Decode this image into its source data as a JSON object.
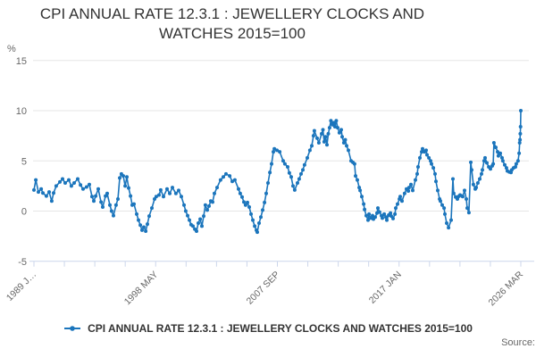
{
  "title": {
    "line1": "CPI ANNUAL RATE 12.3.1 : JEWELLERY CLOCKS AND",
    "line2": "WATCHES 2015=100"
  },
  "legend": {
    "label": "CPI ANNUAL RATE 12.3.1 : JEWELLERY CLOCKS AND WATCHES 2015=100"
  },
  "source": {
    "label": "Source:"
  },
  "colors": {
    "series": "#1b75bc",
    "grid": "#e6e6e6",
    "axis": "#ccd6eb",
    "tick_text": "#666666",
    "title_text": "#333333"
  },
  "chart_data": {
    "type": "line",
    "title": "CPI ANNUAL RATE 12.3.1 : JEWELLERY CLOCKS AND WATCHES 2015=100",
    "xlabel": "",
    "ylabel": "%",
    "y_unit": "%",
    "ylim": [
      -5,
      15
    ],
    "yticks": [
      15,
      10,
      5,
      0,
      -5
    ],
    "xlim": [
      1989.0,
      2026.17
    ],
    "x_tick_labels": [
      "1989 J…",
      "1998 MAY",
      "2007 SEP",
      "2017 JAN",
      "2026 MAR"
    ],
    "x_minor_ticks_between_labels": 3,
    "grid": true,
    "legend_position": "bottom",
    "marker": "dot",
    "series": [
      {
        "name": "CPI ANNUAL RATE 12.3.1 : JEWELLERY CLOCKS AND WATCHES 2015=100",
        "color": "#1b75bc",
        "points": [
          [
            1989.0,
            2.1
          ],
          [
            1989.14,
            3.1
          ],
          [
            1989.34,
            1.9
          ],
          [
            1989.55,
            2.2
          ],
          [
            1989.68,
            1.8
          ],
          [
            1989.95,
            1.5
          ],
          [
            1990.16,
            1.9
          ],
          [
            1990.36,
            1.0
          ],
          [
            1990.5,
            1.8
          ],
          [
            1990.7,
            2.5
          ],
          [
            1990.98,
            2.9
          ],
          [
            1991.18,
            3.2
          ],
          [
            1991.39,
            2.8
          ],
          [
            1991.66,
            3.1
          ],
          [
            1991.86,
            2.5
          ],
          [
            1992.07,
            2.8
          ],
          [
            1992.34,
            3.2
          ],
          [
            1992.55,
            2.6
          ],
          [
            1992.75,
            2.2
          ],
          [
            1993.02,
            2.4
          ],
          [
            1993.23,
            2.65
          ],
          [
            1993.43,
            1.45
          ],
          [
            1993.57,
            1.0
          ],
          [
            1993.71,
            1.5
          ],
          [
            1993.91,
            2.2
          ],
          [
            1994.12,
            0.9
          ],
          [
            1994.25,
            0.4
          ],
          [
            1994.46,
            1.5
          ],
          [
            1994.59,
            1.75
          ],
          [
            1994.8,
            0.6
          ],
          [
            1994.93,
            0.0
          ],
          [
            1995.07,
            -0.45
          ],
          [
            1995.27,
            0.6
          ],
          [
            1995.41,
            1.2
          ],
          [
            1995.55,
            3.3
          ],
          [
            1995.68,
            3.7
          ],
          [
            1995.82,
            3.5
          ],
          [
            1995.96,
            2.5
          ],
          [
            1996.09,
            3.4
          ],
          [
            1996.23,
            2.3
          ],
          [
            1996.37,
            1.5
          ],
          [
            1996.5,
            0.6
          ],
          [
            1996.64,
            0.7
          ],
          [
            1996.84,
            -0.3
          ],
          [
            1996.98,
            -0.9
          ],
          [
            1997.12,
            -1.4
          ],
          [
            1997.25,
            -1.9
          ],
          [
            1997.39,
            -1.6
          ],
          [
            1997.53,
            -2.0
          ],
          [
            1997.66,
            -1.3
          ],
          [
            1997.8,
            -0.5
          ],
          [
            1998.0,
            0.3
          ],
          [
            1998.21,
            1.2
          ],
          [
            1998.34,
            1.45
          ],
          [
            1998.55,
            1.6
          ],
          [
            1998.68,
            2.1
          ],
          [
            1998.89,
            1.45
          ],
          [
            1999.16,
            2.2
          ],
          [
            1999.37,
            1.75
          ],
          [
            1999.57,
            2.35
          ],
          [
            1999.84,
            1.75
          ],
          [
            2000.05,
            2.05
          ],
          [
            2000.25,
            1.45
          ],
          [
            2000.46,
            0.6
          ],
          [
            2000.59,
            0.0
          ],
          [
            2000.73,
            -0.45
          ],
          [
            2000.87,
            -0.9
          ],
          [
            2001.0,
            -1.35
          ],
          [
            2001.14,
            -1.5
          ],
          [
            2001.28,
            -1.8
          ],
          [
            2001.41,
            -2.0
          ],
          [
            2001.55,
            -1.2
          ],
          [
            2001.69,
            -0.8
          ],
          [
            2001.82,
            -1.5
          ],
          [
            2001.96,
            -0.5
          ],
          [
            2002.09,
            0.6
          ],
          [
            2002.23,
            0.1
          ],
          [
            2002.37,
            0.5
          ],
          [
            2002.5,
            1.0
          ],
          [
            2002.64,
            0.9
          ],
          [
            2002.78,
            1.75
          ],
          [
            2002.98,
            2.35
          ],
          [
            2003.25,
            3.1
          ],
          [
            2003.46,
            3.4
          ],
          [
            2003.66,
            3.7
          ],
          [
            2003.94,
            3.5
          ],
          [
            2004.14,
            2.95
          ],
          [
            2004.34,
            3.1
          ],
          [
            2004.62,
            2.2
          ],
          [
            2004.75,
            1.75
          ],
          [
            2004.89,
            1.4
          ],
          [
            2005.03,
            0.9
          ],
          [
            2005.16,
            0.6
          ],
          [
            2005.3,
            0.85
          ],
          [
            2005.44,
            0.4
          ],
          [
            2005.57,
            -0.3
          ],
          [
            2005.71,
            -0.9
          ],
          [
            2005.85,
            -1.5
          ],
          [
            2005.98,
            -1.9
          ],
          [
            2006.05,
            -2.1
          ],
          [
            2006.19,
            -1.2
          ],
          [
            2006.32,
            -0.6
          ],
          [
            2006.46,
            0.1
          ],
          [
            2006.6,
            0.85
          ],
          [
            2006.73,
            1.75
          ],
          [
            2006.87,
            2.8
          ],
          [
            2007.01,
            3.85
          ],
          [
            2007.14,
            4.7
          ],
          [
            2007.28,
            5.9
          ],
          [
            2007.35,
            6.2
          ],
          [
            2007.55,
            6.05
          ],
          [
            2007.76,
            5.9
          ],
          [
            2008.03,
            5.0
          ],
          [
            2008.16,
            4.7
          ],
          [
            2008.37,
            4.4
          ],
          [
            2008.5,
            3.8
          ],
          [
            2008.64,
            3.4
          ],
          [
            2008.78,
            2.5
          ],
          [
            2008.91,
            2.1
          ],
          [
            2009.12,
            2.8
          ],
          [
            2009.25,
            3.2
          ],
          [
            2009.39,
            3.7
          ],
          [
            2009.53,
            4.1
          ],
          [
            2009.66,
            4.6
          ],
          [
            2009.87,
            5.3
          ],
          [
            2010.07,
            6.05
          ],
          [
            2010.21,
            6.5
          ],
          [
            2010.34,
            7.5
          ],
          [
            2010.41,
            8.0
          ],
          [
            2010.62,
            7.25
          ],
          [
            2010.75,
            6.8
          ],
          [
            2010.96,
            7.7
          ],
          [
            2011.06,
            8.1
          ],
          [
            2011.16,
            6.9
          ],
          [
            2011.27,
            7.4
          ],
          [
            2011.37,
            6.6
          ],
          [
            2011.47,
            7.7
          ],
          [
            2011.57,
            8.3
          ],
          [
            2011.67,
            9.0
          ],
          [
            2011.78,
            8.6
          ],
          [
            2011.88,
            8.8
          ],
          [
            2011.98,
            8.4
          ],
          [
            2012.08,
            9.0
          ],
          [
            2012.19,
            8.3
          ],
          [
            2012.32,
            7.8
          ],
          [
            2012.46,
            8.1
          ],
          [
            2012.53,
            7.4
          ],
          [
            2012.66,
            6.8
          ],
          [
            2012.77,
            7.1
          ],
          [
            2012.87,
            6.5
          ],
          [
            2013.01,
            6.05
          ],
          [
            2013.21,
            5.0
          ],
          [
            2013.35,
            4.85
          ],
          [
            2013.48,
            4.7
          ],
          [
            2013.55,
            3.5
          ],
          [
            2013.69,
            3.1
          ],
          [
            2013.83,
            2.35
          ],
          [
            2013.9,
            2.05
          ],
          [
            2014.03,
            1.45
          ],
          [
            2014.17,
            0.7
          ],
          [
            2014.24,
            0.15
          ],
          [
            2014.37,
            -0.45
          ],
          [
            2014.51,
            -0.9
          ],
          [
            2014.58,
            -0.3
          ],
          [
            2014.71,
            -0.7
          ],
          [
            2014.85,
            -0.45
          ],
          [
            2014.92,
            -0.8
          ],
          [
            2015.05,
            -0.6
          ],
          [
            2015.19,
            -0.2
          ],
          [
            2015.26,
            0.3
          ],
          [
            2015.39,
            -0.1
          ],
          [
            2015.53,
            -0.45
          ],
          [
            2015.6,
            -0.7
          ],
          [
            2015.74,
            -0.3
          ],
          [
            2015.87,
            -0.6
          ],
          [
            2015.94,
            -0.9
          ],
          [
            2016.08,
            -0.4
          ],
          [
            2016.22,
            -0.2
          ],
          [
            2016.28,
            -0.5
          ],
          [
            2016.42,
            -0.75
          ],
          [
            2016.56,
            -0.3
          ],
          [
            2016.62,
            0.3
          ],
          [
            2016.76,
            0.7
          ],
          [
            2016.9,
            1.2
          ],
          [
            2016.96,
            1.45
          ],
          [
            2017.1,
            1.0
          ],
          [
            2017.3,
            1.75
          ],
          [
            2017.44,
            2.2
          ],
          [
            2017.58,
            2.0
          ],
          [
            2017.64,
            2.35
          ],
          [
            2017.78,
            2.65
          ],
          [
            2017.92,
            2.05
          ],
          [
            2018.12,
            3.1
          ],
          [
            2018.26,
            3.7
          ],
          [
            2018.33,
            4.4
          ],
          [
            2018.46,
            5.3
          ],
          [
            2018.6,
            5.9
          ],
          [
            2018.67,
            6.2
          ],
          [
            2018.81,
            5.9
          ],
          [
            2018.94,
            6.05
          ],
          [
            2019.01,
            5.6
          ],
          [
            2019.15,
            5.3
          ],
          [
            2019.28,
            5.0
          ],
          [
            2019.35,
            4.7
          ],
          [
            2019.49,
            4.3
          ],
          [
            2019.62,
            3.7
          ],
          [
            2019.69,
            2.95
          ],
          [
            2019.83,
            2.05
          ],
          [
            2019.97,
            1.2
          ],
          [
            2020.03,
            1.0
          ],
          [
            2020.17,
            0.6
          ],
          [
            2020.31,
            0.3
          ],
          [
            2020.37,
            -0.3
          ],
          [
            2020.51,
            -1.2
          ],
          [
            2020.65,
            -1.65
          ],
          [
            2020.85,
            -0.9
          ],
          [
            2020.99,
            3.2
          ],
          [
            2021.05,
            1.75
          ],
          [
            2021.19,
            1.4
          ],
          [
            2021.33,
            1.2
          ],
          [
            2021.4,
            1.45
          ],
          [
            2021.53,
            1.6
          ],
          [
            2021.67,
            1.5
          ],
          [
            2021.74,
            1.45
          ],
          [
            2021.87,
            2.05
          ],
          [
            2022.01,
            1.2
          ],
          [
            2022.08,
            0.3
          ],
          [
            2022.21,
            -0.15
          ],
          [
            2022.35,
            4.85
          ],
          [
            2022.42,
            4.1
          ],
          [
            2022.55,
            2.65
          ],
          [
            2022.69,
            2.2
          ],
          [
            2022.76,
            2.35
          ],
          [
            2022.89,
            2.8
          ],
          [
            2023.03,
            3.2
          ],
          [
            2023.17,
            3.7
          ],
          [
            2023.24,
            4.1
          ],
          [
            2023.37,
            5.0
          ],
          [
            2023.44,
            5.3
          ],
          [
            2023.58,
            4.8
          ],
          [
            2023.72,
            4.4
          ],
          [
            2023.85,
            4.2
          ],
          [
            2023.99,
            4.5
          ],
          [
            2024.06,
            4.7
          ],
          [
            2024.12,
            6.8
          ],
          [
            2024.26,
            6.35
          ],
          [
            2024.4,
            5.9
          ],
          [
            2024.46,
            5.5
          ],
          [
            2024.6,
            5.75
          ],
          [
            2024.74,
            5.3
          ],
          [
            2024.8,
            5.0
          ],
          [
            2024.94,
            4.6
          ],
          [
            2025.07,
            4.3
          ],
          [
            2025.14,
            4.0
          ],
          [
            2025.28,
            3.9
          ],
          [
            2025.42,
            3.85
          ],
          [
            2025.48,
            4.1
          ],
          [
            2025.62,
            4.3
          ],
          [
            2025.76,
            4.4
          ],
          [
            2025.82,
            4.7
          ],
          [
            2025.96,
            5.0
          ],
          [
            2026.04,
            5.75
          ],
          [
            2026.08,
            6.8
          ],
          [
            2026.11,
            7.1
          ],
          [
            2026.13,
            7.7
          ],
          [
            2026.15,
            8.4
          ],
          [
            2026.17,
            10.0
          ]
        ]
      }
    ]
  }
}
